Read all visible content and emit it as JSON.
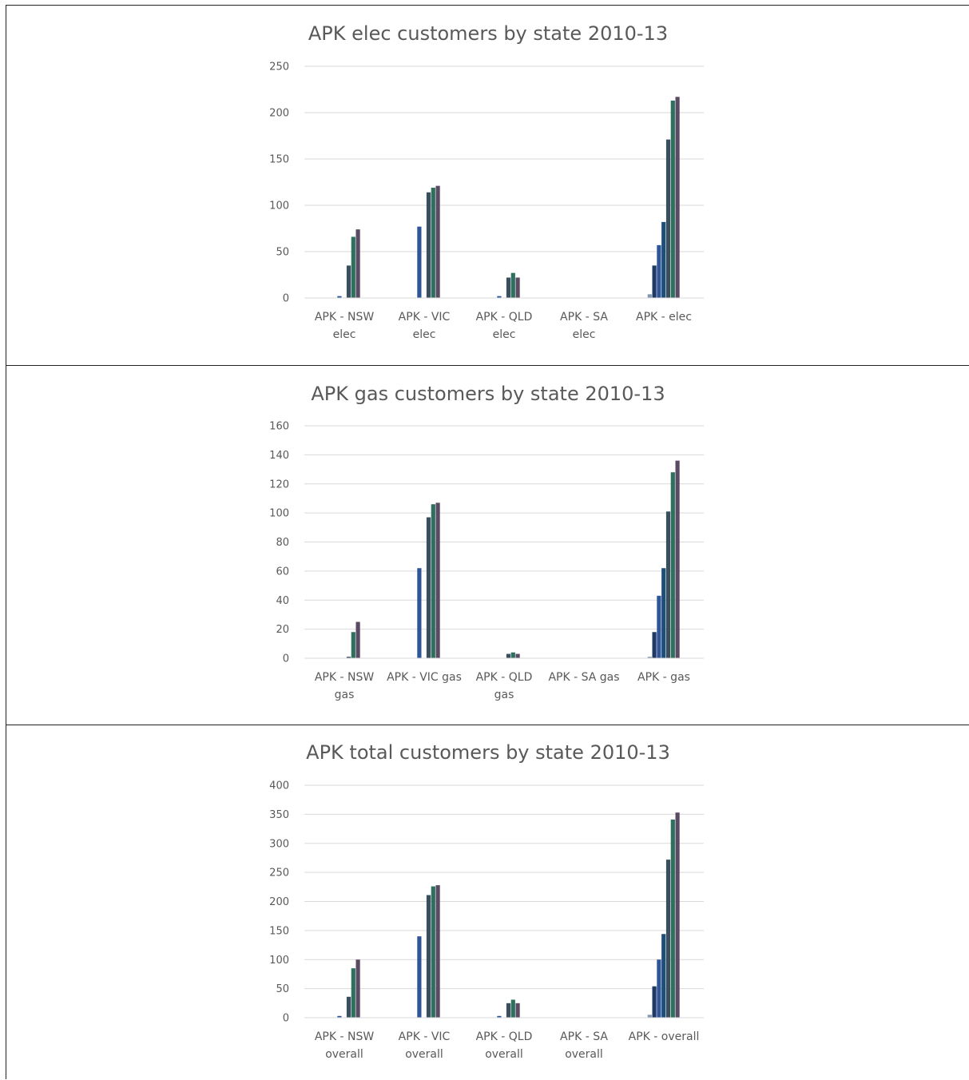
{
  "colors": [
    "#8497b0",
    "#1f3864",
    "#2e5597",
    "#1f4e79",
    "#3a4f5e",
    "#2f6f5e",
    "#5a4a63"
  ],
  "chart_data": [
    {
      "type": "bar",
      "title": "APK elec customers by state 2010-13",
      "ylim": [
        0,
        250
      ],
      "yticks": [
        0,
        50,
        100,
        150,
        200,
        250
      ],
      "grid": true,
      "legend": "none",
      "categories": [
        [
          "APK - NSW",
          "elec"
        ],
        [
          "APK - VIC",
          "elec"
        ],
        [
          "APK - QLD",
          "elec"
        ],
        [
          "APK - SA",
          "elec"
        ],
        [
          "APK - elec"
        ]
      ],
      "series": [
        {
          "values": [
            0,
            0,
            0,
            0,
            4
          ]
        },
        {
          "values": [
            0,
            0,
            0,
            0,
            35
          ]
        },
        {
          "values": [
            2,
            77,
            2,
            0,
            57
          ]
        },
        {
          "values": [
            0,
            0,
            0,
            0,
            82
          ]
        },
        {
          "values": [
            35,
            114,
            22,
            0,
            171
          ]
        },
        {
          "values": [
            66,
            119,
            27,
            0,
            213
          ]
        },
        {
          "values": [
            74,
            121,
            22,
            0,
            217
          ]
        }
      ]
    },
    {
      "type": "bar",
      "title": "APK gas customers by state 2010-13",
      "ylim": [
        0,
        160
      ],
      "yticks": [
        0,
        20,
        40,
        60,
        80,
        100,
        120,
        140,
        160
      ],
      "grid": true,
      "legend": "none",
      "categories": [
        [
          "APK - NSW",
          "gas"
        ],
        [
          "APK - VIC gas"
        ],
        [
          "APK - QLD",
          "gas"
        ],
        [
          "APK - SA gas"
        ],
        [
          "APK - gas"
        ]
      ],
      "series": [
        {
          "values": [
            0,
            0,
            0,
            0,
            1
          ]
        },
        {
          "values": [
            0,
            0,
            0,
            0,
            18
          ]
        },
        {
          "values": [
            0,
            62,
            0,
            0,
            43
          ]
        },
        {
          "values": [
            0,
            0,
            0,
            0,
            62
          ]
        },
        {
          "values": [
            1,
            97,
            3,
            0,
            101
          ]
        },
        {
          "values": [
            18,
            106,
            4,
            0,
            128
          ]
        },
        {
          "values": [
            25,
            107,
            3,
            0,
            136
          ]
        }
      ]
    },
    {
      "type": "bar",
      "title": "APK total customers by state 2010-13",
      "ylim": [
        0,
        400
      ],
      "yticks": [
        0,
        50,
        100,
        150,
        200,
        250,
        300,
        350,
        400
      ],
      "grid": true,
      "legend": "none",
      "categories": [
        [
          "APK - NSW",
          "overall"
        ],
        [
          "APK - VIC",
          "overall"
        ],
        [
          "APK - QLD",
          "overall"
        ],
        [
          "APK - SA",
          "overall"
        ],
        [
          "APK - overall"
        ]
      ],
      "series": [
        {
          "values": [
            0,
            0,
            0,
            0,
            5
          ]
        },
        {
          "values": [
            0,
            0,
            0,
            0,
            54
          ]
        },
        {
          "values": [
            3,
            140,
            3,
            0,
            100
          ]
        },
        {
          "values": [
            0,
            0,
            0,
            0,
            144
          ]
        },
        {
          "values": [
            36,
            211,
            25,
            0,
            272
          ]
        },
        {
          "values": [
            85,
            226,
            31,
            0,
            341
          ]
        },
        {
          "values": [
            100,
            228,
            25,
            0,
            353
          ]
        }
      ]
    }
  ]
}
